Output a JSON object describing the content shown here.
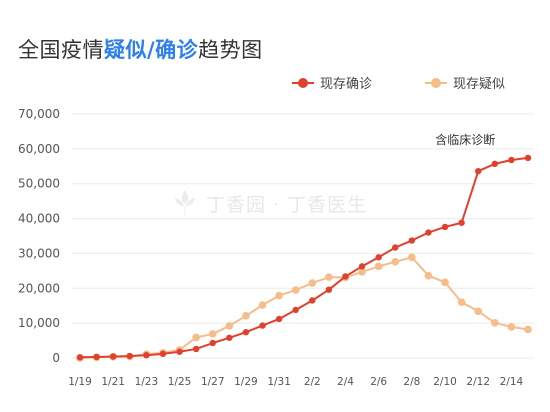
{
  "title": {
    "prefix": "全国疫情",
    "highlight_a": "疑似",
    "separator": "/",
    "highlight_b": "确诊",
    "suffix": "趋势图"
  },
  "watermark": "丁香园 · 丁香医生",
  "colors": {
    "confirmed": "#e0412f",
    "suspected": "#f4bd8a",
    "title_highlight": "#2f80ed",
    "grid": "#ebebeb"
  },
  "chart_data": {
    "type": "line",
    "x_tick_labels": [
      "1/19",
      "1/21",
      "1/23",
      "1/25",
      "1/27",
      "1/29",
      "1/31",
      "2/2",
      "2/4",
      "2/6",
      "2/8",
      "2/10",
      "2/12",
      "2/14"
    ],
    "y_tick_labels": [
      "0",
      "10,000",
      "20,000",
      "30,000",
      "40,000",
      "50,000",
      "60,000",
      "70,000"
    ],
    "ylim": [
      0,
      70000
    ],
    "grid": "horizontal",
    "legend_position": "top-right",
    "series": [
      {
        "name": "现存确诊",
        "color": "#e0412f",
        "x": [
          "1/19",
          "1/20",
          "1/21",
          "1/22",
          "1/23",
          "1/24",
          "1/25",
          "1/26",
          "1/27",
          "1/28",
          "1/29",
          "1/30",
          "1/31",
          "2/1",
          "2/2",
          "2/3",
          "2/4",
          "2/5",
          "2/6",
          "2/7",
          "2/8",
          "2/9",
          "2/10",
          "2/11",
          "2/12",
          "2/13",
          "2/14",
          "2/15"
        ],
        "values": [
          200,
          290,
          430,
          560,
          800,
          1200,
          1800,
          2600,
          4300,
          5800,
          7400,
          9300,
          11200,
          13800,
          16500,
          19600,
          23400,
          26300,
          28900,
          31700,
          33700,
          36000,
          37600,
          38800,
          53600,
          55700,
          56800,
          57400
        ]
      },
      {
        "name": "现存疑似",
        "color": "#f4bd8a",
        "x": [
          "1/19",
          "1/20",
          "1/21",
          "1/22",
          "1/23",
          "1/24",
          "1/25",
          "1/26",
          "1/27",
          "1/28",
          "1/29",
          "1/30",
          "1/31",
          "2/1",
          "2/2",
          "2/3",
          "2/4",
          "2/5",
          "2/6",
          "2/7",
          "2/8",
          "2/9",
          "2/10",
          "2/11",
          "2/12",
          "2/13",
          "2/14",
          "2/15"
        ],
        "values": [
          0,
          200,
          350,
          400,
          1100,
          1500,
          2300,
          5900,
          6900,
          9200,
          12100,
          15200,
          17900,
          19500,
          21500,
          23200,
          23100,
          24700,
          26300,
          27600,
          28900,
          23600,
          21700,
          16000,
          13400,
          10100,
          8900,
          8200
        ]
      }
    ],
    "annotations": [
      {
        "text": "含临床诊断",
        "x": "2/12"
      }
    ]
  }
}
